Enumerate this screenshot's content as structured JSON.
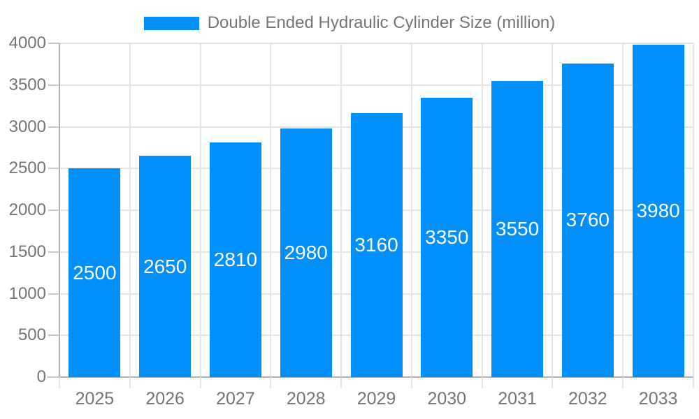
{
  "legend": {
    "label": "Double Ended Hydraulic Cylinder Size (million)"
  },
  "colors": {
    "bar": "#008FFB",
    "axis_text": "#757575",
    "gridline": "#e3e3e3",
    "axis_line": "#b0b0b0",
    "value_label": "#ffffff"
  },
  "chart_data": {
    "type": "bar",
    "title": "",
    "legend": "Double Ended Hydraulic Cylinder Size (million)",
    "legend_position": "top",
    "categories": [
      "2025",
      "2026",
      "2027",
      "2028",
      "2029",
      "2030",
      "2031",
      "2032",
      "2033"
    ],
    "values": [
      2500,
      2650,
      2810,
      2980,
      3160,
      3350,
      3550,
      3760,
      3980
    ],
    "xlabel": "",
    "ylabel": "",
    "ylim": [
      0,
      4000
    ],
    "ytick_step": 500,
    "yticks": [
      0,
      500,
      1000,
      1500,
      2000,
      2500,
      3000,
      3500,
      4000
    ],
    "grid": true,
    "value_labels": "inside-center"
  }
}
